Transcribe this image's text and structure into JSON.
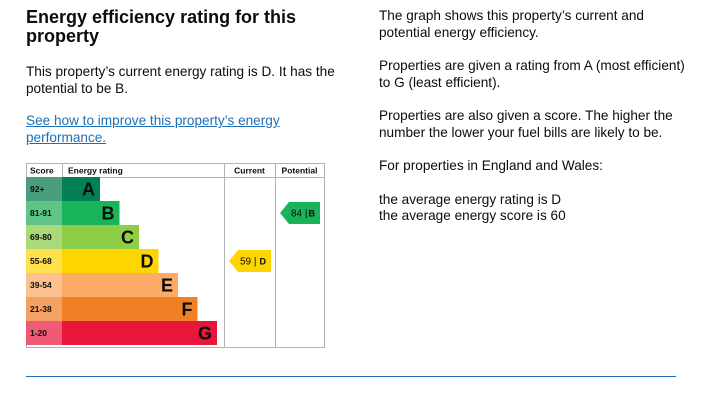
{
  "heading": "Energy efficiency rating for this property",
  "current_rating_text": "This property’s current energy rating is D. It has the potential to be B.",
  "improve_link": "See how to improve this property’s energy performance.",
  "info": {
    "p1": "The graph shows this property’s current and potential energy efficiency.",
    "p2": "Properties are given a rating from A (most efficient) to G (least efficient).",
    "p3": "Properties are also given a score. The higher the number the lower your fuel bills are likely to be.",
    "p4": "For properties in England and Wales:",
    "p5a": "the average energy rating is D",
    "p5b": "the average energy score is 60"
  },
  "chart_data": {
    "type": "table",
    "headers": {
      "score": "Score",
      "rating": "Energy rating",
      "current": "Current",
      "potential": "Potential"
    },
    "bands": [
      {
        "letter": "A",
        "range": "92+",
        "color": "#008054",
        "score_color": "#4a9e7b"
      },
      {
        "letter": "B",
        "range": "81-91",
        "color": "#19b459",
        "score_color": "#5fc587"
      },
      {
        "letter": "C",
        "range": "69-80",
        "color": "#8dce46",
        "score_color": "#aad97a"
      },
      {
        "letter": "D",
        "range": "55-68",
        "color": "#ffd500",
        "score_color": "#ffe14d"
      },
      {
        "letter": "E",
        "range": "39-54",
        "color": "#fcaa65",
        "score_color": "#fdc18f"
      },
      {
        "letter": "F",
        "range": "21-38",
        "color": "#ef8023",
        "score_color": "#f3a263"
      },
      {
        "letter": "G",
        "range": "1-20",
        "color": "#e9153b",
        "score_color": "#ef5b76"
      }
    ],
    "current": {
      "score": 59,
      "letter": "D",
      "color": "#ffd500"
    },
    "potential": {
      "score": 84,
      "letter": "B",
      "color": "#19b459"
    }
  }
}
